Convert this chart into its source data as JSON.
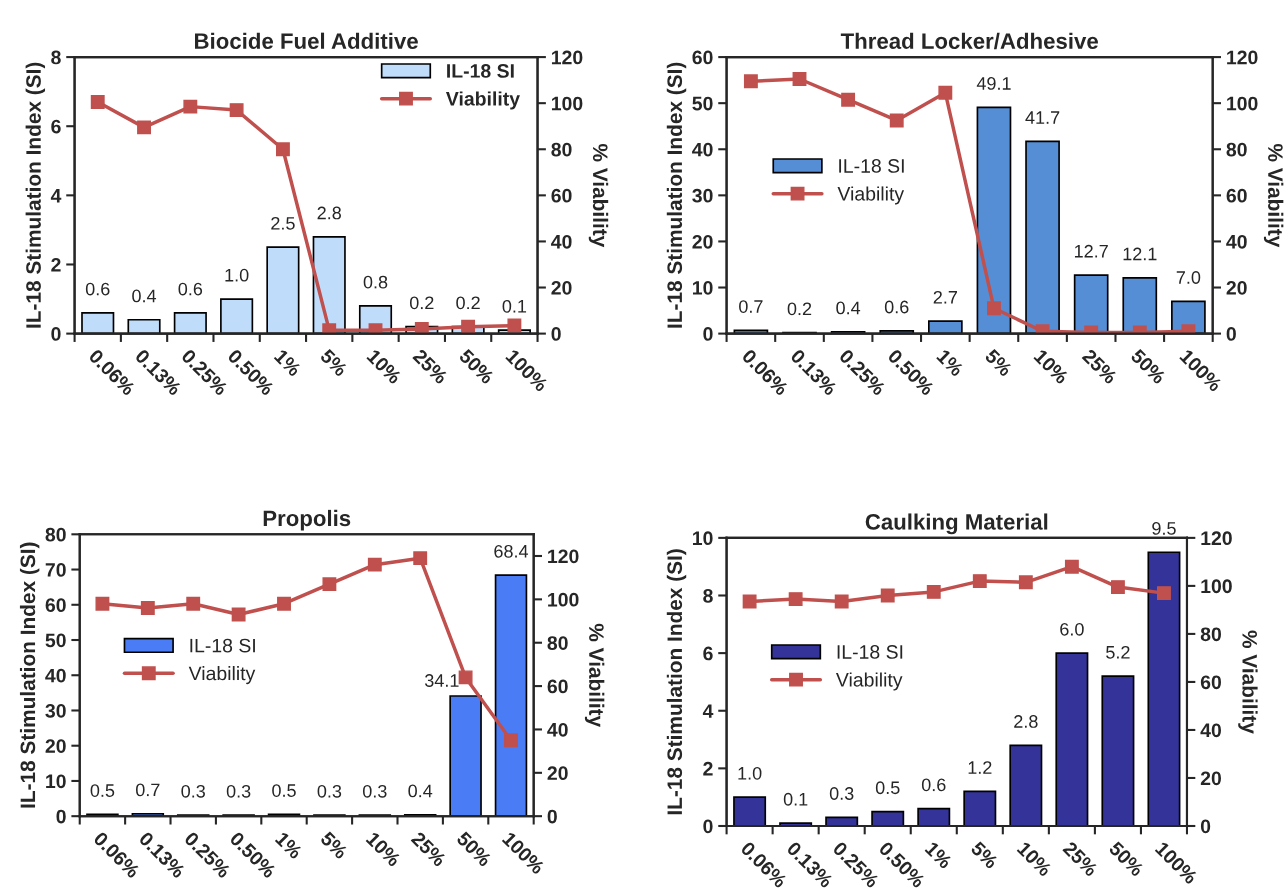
{
  "chart_data": [
    {
      "type": "bar",
      "title": "Biocide Fuel Additive",
      "ylabel": "IL-18 Stimulation Index (SI)",
      "y2label": "% Viability",
      "categories": [
        "0.06%",
        "0.13%",
        "0.25%",
        "0.50%",
        "1%",
        "5%",
        "10%",
        "25%",
        "50%",
        "100%"
      ],
      "ylim": [
        0,
        8
      ],
      "yticks": [
        0,
        2,
        4,
        6,
        8
      ],
      "y2lim": [
        0,
        120
      ],
      "y2ticks": [
        0,
        20,
        40,
        60,
        80,
        100,
        120
      ],
      "legend": "top right",
      "grid": false,
      "series": [
        {
          "name": "IL-18 SI",
          "type": "bar",
          "color": "#bfdcfa",
          "values": [
            0.6,
            0.4,
            0.6,
            1.0,
            2.5,
            2.8,
            0.8,
            0.2,
            0.2,
            0.1
          ],
          "value_labels": [
            "0.6",
            "0.4",
            "0.6",
            "1.0",
            "2.5",
            "2.8",
            "0.8",
            "0.2",
            "0.2",
            "0.1"
          ]
        },
        {
          "name": "Viability",
          "type": "line",
          "axis": "y2",
          "color": "#c0504d",
          "marker": "square",
          "values": [
            100.5,
            89.5,
            98.5,
            97,
            80,
            1.5,
            1.5,
            2,
            3,
            3.5
          ]
        }
      ]
    },
    {
      "type": "bar",
      "title": "Thread Locker/Adhesive",
      "ylabel": "IL-18 Stimulation Index (SI)",
      "y2label": "% Viability",
      "categories": [
        "0.06%",
        "0.13%",
        "0.25%",
        "0.50%",
        "1%",
        "5%",
        "10%",
        "25%",
        "50%",
        "100%"
      ],
      "ylim": [
        0,
        60
      ],
      "yticks": [
        0,
        10,
        20,
        30,
        40,
        50,
        60
      ],
      "y2lim": [
        0,
        120
      ],
      "y2ticks": [
        0,
        20,
        40,
        60,
        80,
        100,
        120
      ],
      "legend": "left",
      "grid": false,
      "series": [
        {
          "name": "IL-18 SI",
          "type": "bar",
          "color": "#558ed5",
          "values": [
            0.7,
            0.2,
            0.4,
            0.6,
            2.7,
            49.1,
            41.7,
            12.7,
            12.1,
            7.0
          ],
          "value_labels": [
            "0.7",
            "0.2",
            "0.4",
            "0.6",
            "2.7",
            "49.1",
            "41.7",
            "12.7",
            "12.1",
            "7.0"
          ]
        },
        {
          "name": "Viability",
          "type": "line",
          "axis": "y2",
          "color": "#c0504d",
          "marker": "square",
          "values": [
            109.5,
            110.5,
            101.5,
            92.5,
            104.5,
            11,
            1,
            0.5,
            0.5,
            1
          ]
        }
      ]
    },
    {
      "type": "bar",
      "title": "Propolis",
      "ylabel": "IL-18 Stimulation Index (SI)",
      "y2label": "% Viability",
      "categories": [
        "0.06%",
        "0.13%",
        "0.25%",
        "0.50%",
        "1%",
        "5%",
        "10%",
        "25%",
        "50%",
        "100%"
      ],
      "ylim": [
        0,
        80
      ],
      "yticks": [
        0,
        10,
        20,
        30,
        40,
        50,
        60,
        70,
        80
      ],
      "y2lim": [
        0,
        130
      ],
      "y2ticks": [
        0,
        20,
        40,
        60,
        80,
        100,
        120
      ],
      "legend": "left",
      "grid": false,
      "series": [
        {
          "name": "IL-18 SI",
          "type": "bar",
          "color": "#4a7df5",
          "values": [
            0.5,
            0.7,
            0.3,
            0.3,
            0.5,
            0.3,
            0.3,
            0.4,
            34.1,
            68.4
          ],
          "value_labels": [
            "0.5",
            "0.7",
            "0.3",
            "0.3",
            "0.5",
            "0.3",
            "0.3",
            "0.4",
            "34.1",
            "68.4"
          ]
        },
        {
          "name": "Viability",
          "type": "line",
          "axis": "y2",
          "color": "#c0504d",
          "marker": "square",
          "values": [
            98,
            96,
            98,
            93,
            98,
            107,
            116,
            119,
            64,
            35
          ]
        }
      ]
    },
    {
      "type": "bar",
      "title": "Caulking Material",
      "ylabel": "IL-18 Stimulation Index (SI)",
      "y2label": "% Viability",
      "categories": [
        "0.06%",
        "0.13%",
        "0.25%",
        "0.50%",
        "1%",
        "5%",
        "10%",
        "25%",
        "50%",
        "100%"
      ],
      "ylim": [
        0,
        10
      ],
      "yticks": [
        0,
        2,
        4,
        6,
        8,
        10
      ],
      "y2lim": [
        0,
        120
      ],
      "y2ticks": [
        0,
        20,
        40,
        60,
        80,
        100,
        120
      ],
      "legend": "left",
      "grid": false,
      "series": [
        {
          "name": "IL-18 SI",
          "type": "bar",
          "color": "#333399",
          "values": [
            1.0,
            0.1,
            0.3,
            0.5,
            0.6,
            1.2,
            2.8,
            6.0,
            5.2,
            9.5
          ],
          "value_labels": [
            "1.0",
            "0.1",
            "0.3",
            "0.5",
            "0.6",
            "1.2",
            "2.8",
            "6.0",
            "5.2",
            "9.5"
          ]
        },
        {
          "name": "Viability",
          "type": "line",
          "axis": "y2",
          "color": "#c0504d",
          "marker": "square",
          "values": [
            93.5,
            94.5,
            93.5,
            96,
            97.5,
            102,
            101.5,
            108,
            99.5,
            97
          ]
        }
      ]
    }
  ]
}
